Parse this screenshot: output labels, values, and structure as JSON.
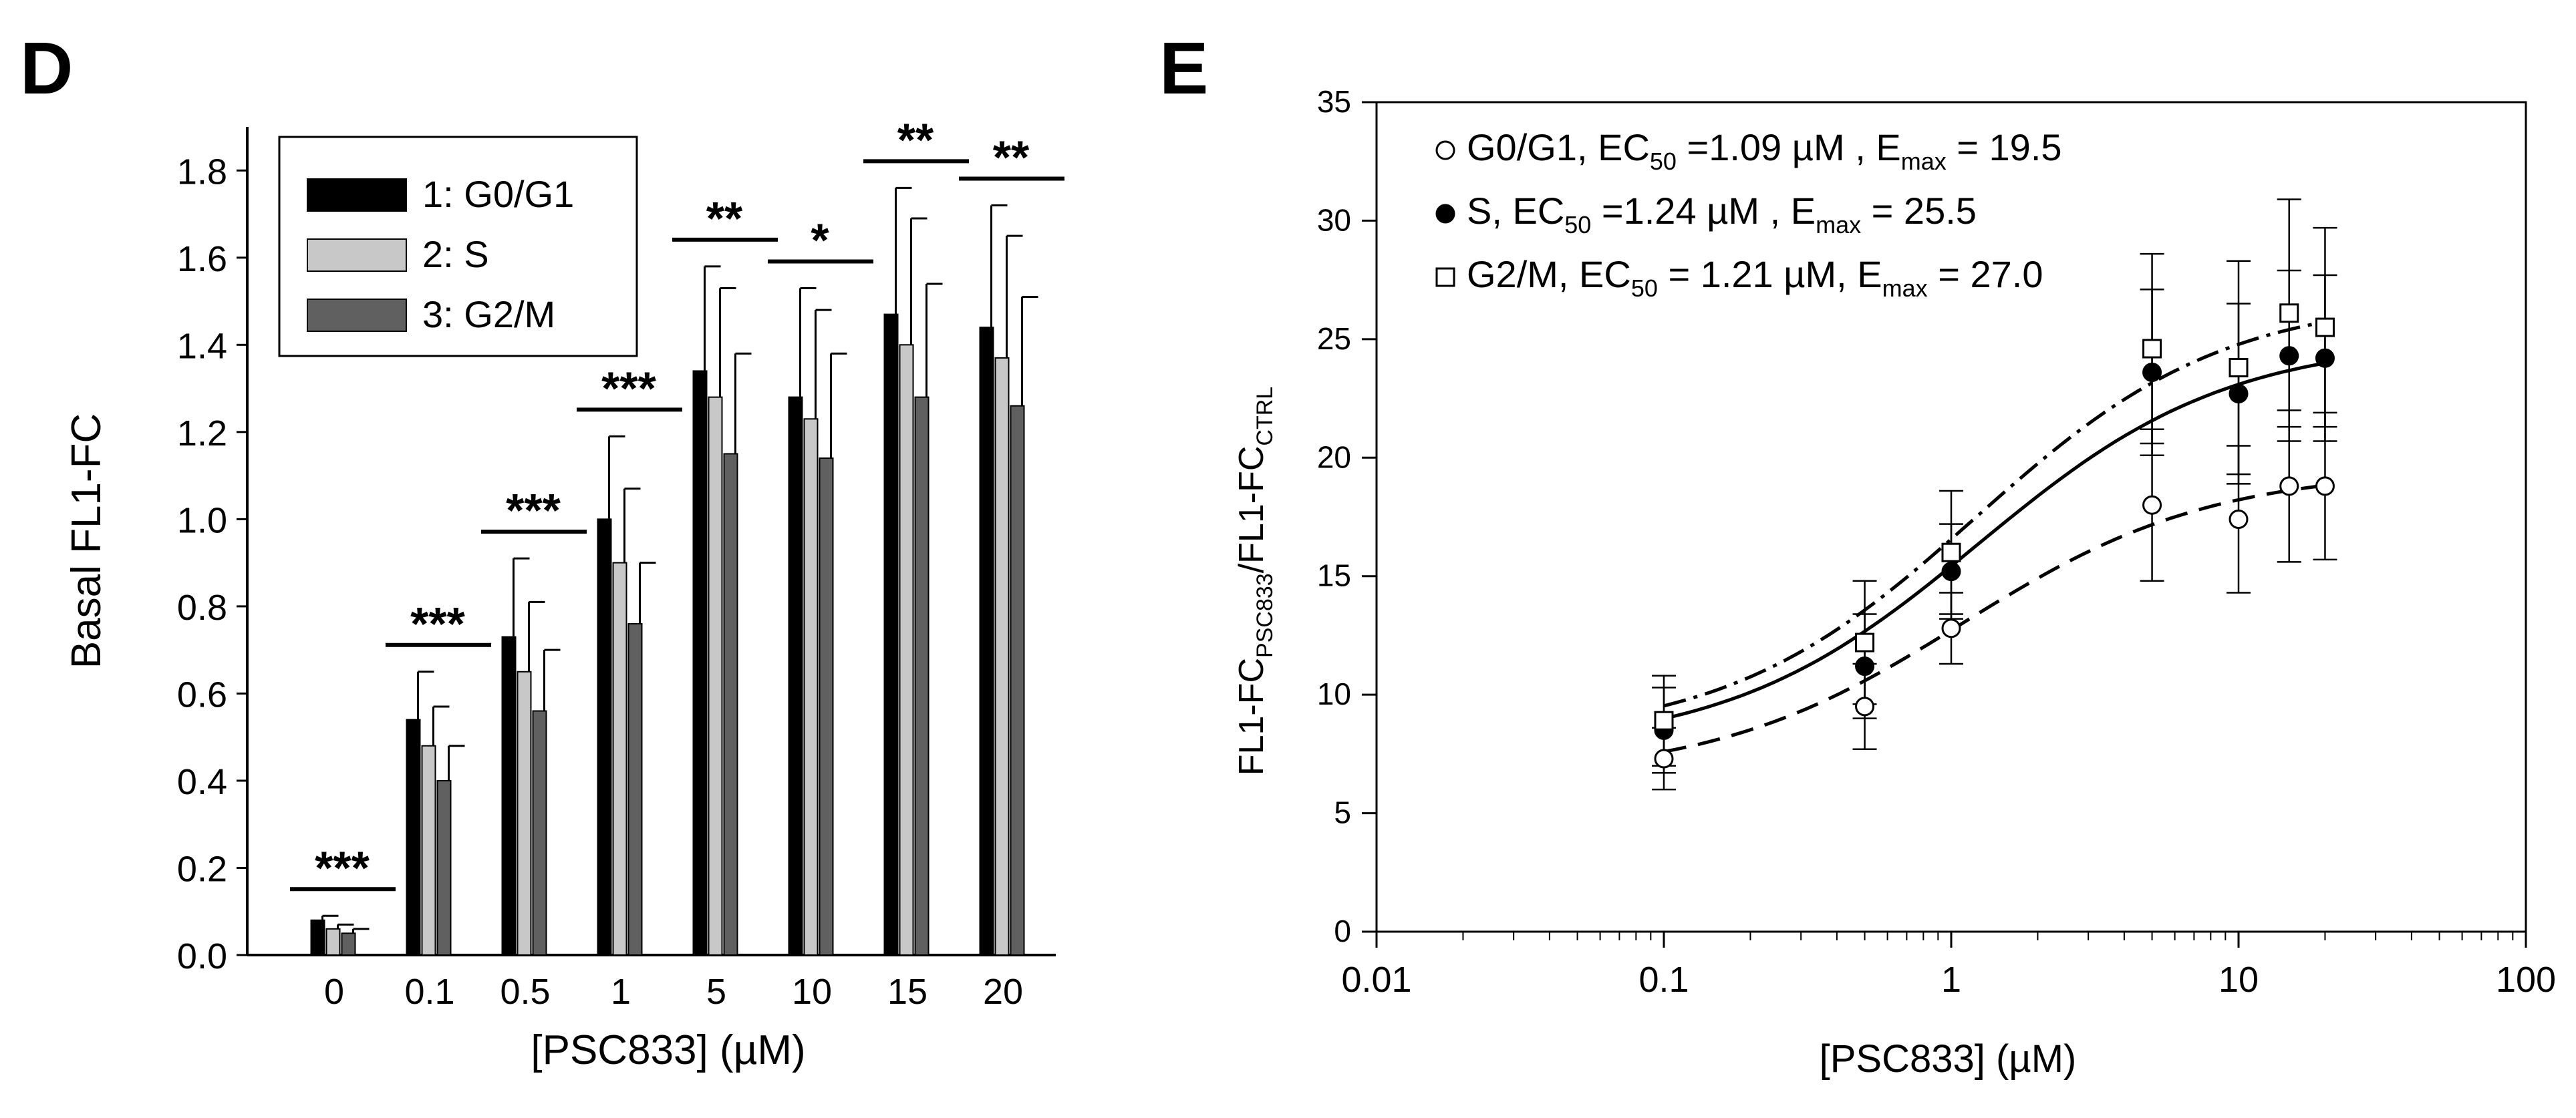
{
  "chart_data": [
    {
      "panel": "D",
      "type": "bar",
      "xlabel": "[PSC833] (µM)",
      "ylabel": "Basal FL1-FC",
      "ylim": [
        0,
        1.9
      ],
      "yticks": [
        "0.0",
        "0.2",
        "0.4",
        "0.6",
        "0.8",
        "1.0",
        "1.2",
        "1.4",
        "1.6",
        "1.8"
      ],
      "categories": [
        "0",
        "0.1",
        "0.5",
        "1",
        "5",
        "10",
        "15",
        "20"
      ],
      "legend_position": "top-left",
      "series": [
        {
          "name": "1: G0/G1",
          "color": "#000000",
          "values": [
            0.08,
            0.54,
            0.73,
            1.0,
            1.34,
            1.28,
            1.47,
            1.44
          ],
          "errors": [
            0.01,
            0.11,
            0.18,
            0.19,
            0.24,
            0.25,
            0.29,
            0.28
          ]
        },
        {
          "name": "2: S",
          "color": "#c8c8c8",
          "values": [
            0.06,
            0.48,
            0.65,
            0.9,
            1.28,
            1.23,
            1.4,
            1.37
          ],
          "errors": [
            0.01,
            0.09,
            0.16,
            0.17,
            0.25,
            0.25,
            0.29,
            0.28
          ]
        },
        {
          "name": "3: G2/M",
          "color": "#606060",
          "values": [
            0.05,
            0.4,
            0.56,
            0.76,
            1.15,
            1.14,
            1.28,
            1.26
          ],
          "errors": [
            0.01,
            0.08,
            0.14,
            0.14,
            0.23,
            0.24,
            0.26,
            0.25
          ]
        }
      ],
      "significance": [
        "***",
        "***",
        "***",
        "***",
        "**",
        "*",
        "**",
        "**"
      ]
    },
    {
      "panel": "E",
      "type": "scatter",
      "xlabel": "[PSC833] (µM)",
      "ylabel": {
        "main1": "FL1-FC",
        "sub1": "PSC833",
        "main2": "/FL1-FC",
        "sub2": "CTRL"
      },
      "xscale": "log",
      "xlim": [
        0.01,
        100
      ],
      "ylim": [
        0,
        35
      ],
      "xticks": [
        "0.01",
        "0.1",
        "1",
        "10",
        "100"
      ],
      "yticks": [
        "0",
        "5",
        "10",
        "15",
        "20",
        "25",
        "30",
        "35"
      ],
      "x": [
        0.1,
        0.5,
        1,
        5,
        10,
        15,
        20
      ],
      "series": [
        {
          "name": "G0/G1",
          "marker": "open-circle",
          "line": "dashed",
          "y": [
            7.3,
            9.5,
            12.8,
            18.0,
            17.4,
            18.8,
            18.8
          ],
          "errors": [
            1.3,
            1.8,
            1.5,
            3.2,
            3.1,
            3.2,
            3.1
          ]
        },
        {
          "name": "S",
          "marker": "filled-circle",
          "line": "solid",
          "y": [
            8.5,
            11.2,
            15.2,
            23.6,
            22.7,
            24.3,
            24.2
          ],
          "errors": [
            1.8,
            2.2,
            2.0,
            3.5,
            3.8,
            3.6,
            3.5
          ]
        },
        {
          "name": "G2/M",
          "marker": "open-square",
          "line": "dash-dot",
          "y": [
            8.9,
            12.2,
            16.0,
            24.6,
            23.8,
            26.1,
            25.5
          ],
          "errors": [
            1.9,
            2.6,
            2.6,
            4.0,
            4.5,
            4.8,
            4.2
          ]
        }
      ],
      "legend_position": "top-left",
      "legend": [
        {
          "name": "G0/G1",
          "ec_label": "EC",
          "ec_sub": "50",
          "ec_value": " =1.09 µM , E",
          "emax_sub": "max",
          "emax_value": " = 19.5"
        },
        {
          "name": "S",
          "ec_label": "EC",
          "ec_sub": "50",
          "ec_value": " =1.24 µM , E",
          "emax_sub": "max",
          "emax_value": " = 25.5"
        },
        {
          "name": "G2/M",
          "ec_label": "EC",
          "ec_sub": "50",
          "ec_value": " = 1.21 µM, E",
          "emax_sub": "max",
          "emax_value": " = 27.0"
        }
      ]
    }
  ],
  "panel_labels": {
    "d": "D",
    "e": "E"
  }
}
